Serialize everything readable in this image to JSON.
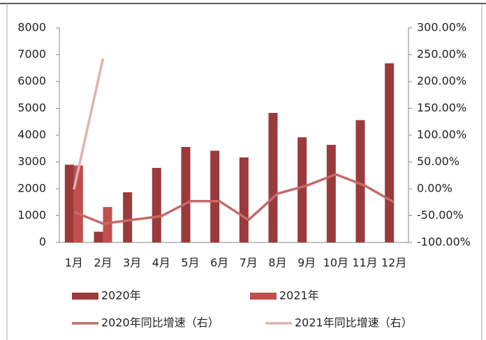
{
  "chart_data": {
    "type": "combo",
    "categories": [
      "1月",
      "2月",
      "3月",
      "4月",
      "5月",
      "6月",
      "7月",
      "8月",
      "9月",
      "10月",
      "11月",
      "12月"
    ],
    "series": [
      {
        "name": "2020年",
        "type": "bar",
        "color": "#9b3a3a",
        "values": [
          2900,
          400,
          1870,
          2780,
          3560,
          3420,
          3170,
          4830,
          3920,
          3640,
          4560,
          6680
        ]
      },
      {
        "name": "2021年",
        "type": "bar",
        "color": "#c0504d",
        "values": [
          2870,
          1320,
          null,
          null,
          null,
          null,
          null,
          null,
          null,
          null,
          null,
          null
        ]
      },
      {
        "name": "2020年同比增速（右）",
        "type": "line",
        "axis": "y2",
        "color": "#c56a68",
        "values": [
          -43,
          -65,
          -58,
          -51,
          -23,
          -23,
          -58,
          -9,
          6,
          27,
          6,
          -25
        ]
      },
      {
        "name": "2021年同比增速（右）",
        "type": "line",
        "axis": "y2",
        "color": "#e2b1b0",
        "values": [
          -1,
          243,
          null,
          null,
          null,
          null,
          null,
          null,
          null,
          null,
          null,
          null
        ]
      }
    ],
    "ylim": [
      0,
      8000
    ],
    "yticks": [
      0,
      1000,
      2000,
      3000,
      4000,
      5000,
      6000,
      7000,
      8000
    ],
    "y2lim": [
      -100,
      300
    ],
    "y2ticks": [
      {
        "value": -100,
        "label": "-100.00%"
      },
      {
        "value": -50,
        "label": "-50.00%"
      },
      {
        "value": 0,
        "label": "0.00%"
      },
      {
        "value": 50,
        "label": "50.00%"
      },
      {
        "value": 100,
        "label": "100.00%"
      },
      {
        "value": 150,
        "label": "150.00%"
      },
      {
        "value": 200,
        "label": "200.00%"
      },
      {
        "value": 250,
        "label": "250.00%"
      },
      {
        "value": 300,
        "label": "300.00%"
      }
    ]
  }
}
